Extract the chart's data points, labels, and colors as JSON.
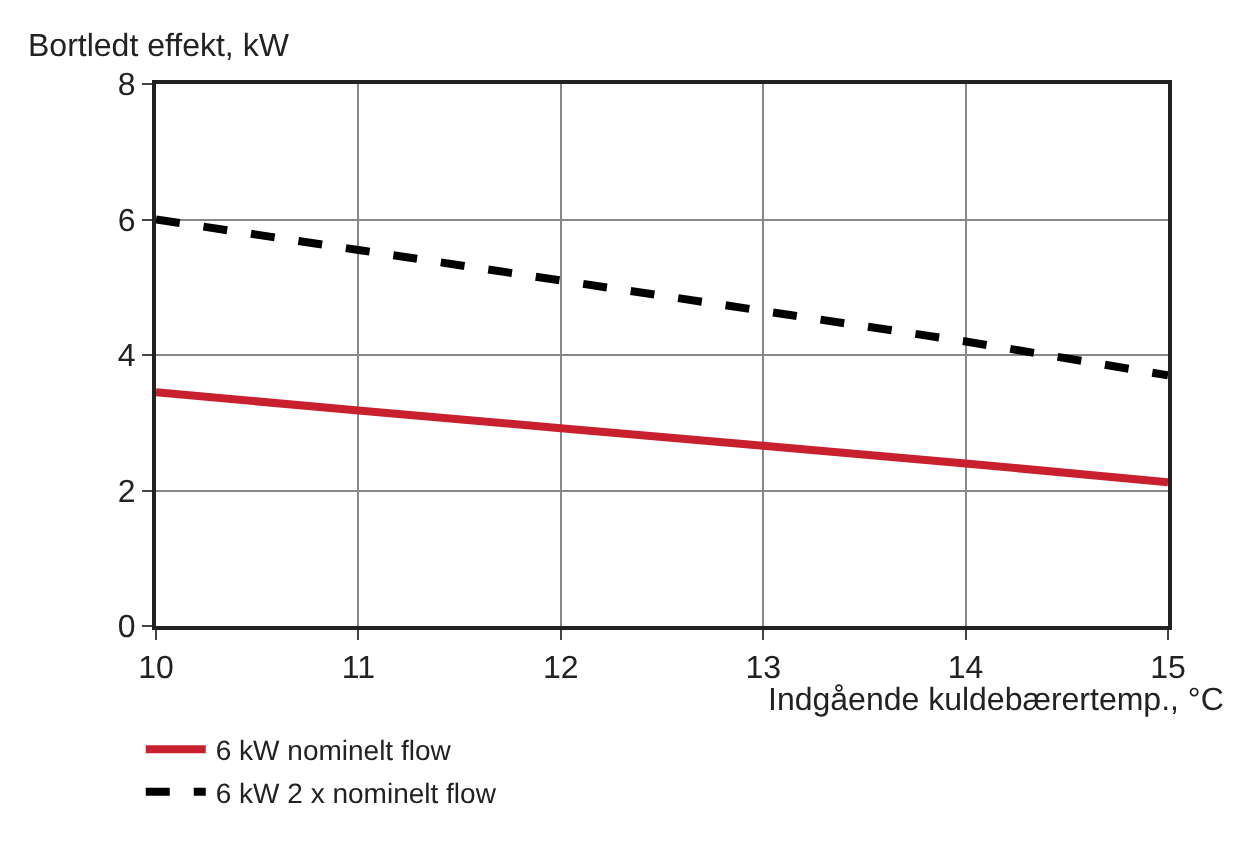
{
  "chart_data": {
    "type": "line",
    "ylabel": "Bortledt effekt, kW",
    "xlabel": "Indgående kuldebærertemp., °C",
    "x": [
      10,
      11,
      12,
      13,
      14,
      15
    ],
    "series": [
      {
        "name": "6 kW nominelt flow",
        "color": "#c8202f",
        "line_style": "solid",
        "values": [
          3.45,
          3.18,
          2.92,
          2.66,
          2.4,
          2.12
        ]
      },
      {
        "name": "6 kW 2 x nominelt flow",
        "color": "#000000",
        "line_style": "dashed",
        "values": [
          6.0,
          5.55,
          5.1,
          4.65,
          4.2,
          3.7
        ]
      }
    ],
    "xlim": [
      10,
      15
    ],
    "xticks": [
      10,
      11,
      12,
      13,
      14,
      15
    ],
    "ylim": [
      0,
      8
    ],
    "yticks": [
      0,
      2,
      4,
      6,
      8
    ],
    "grid": true,
    "legend": "bottom",
    "marker": "none"
  }
}
